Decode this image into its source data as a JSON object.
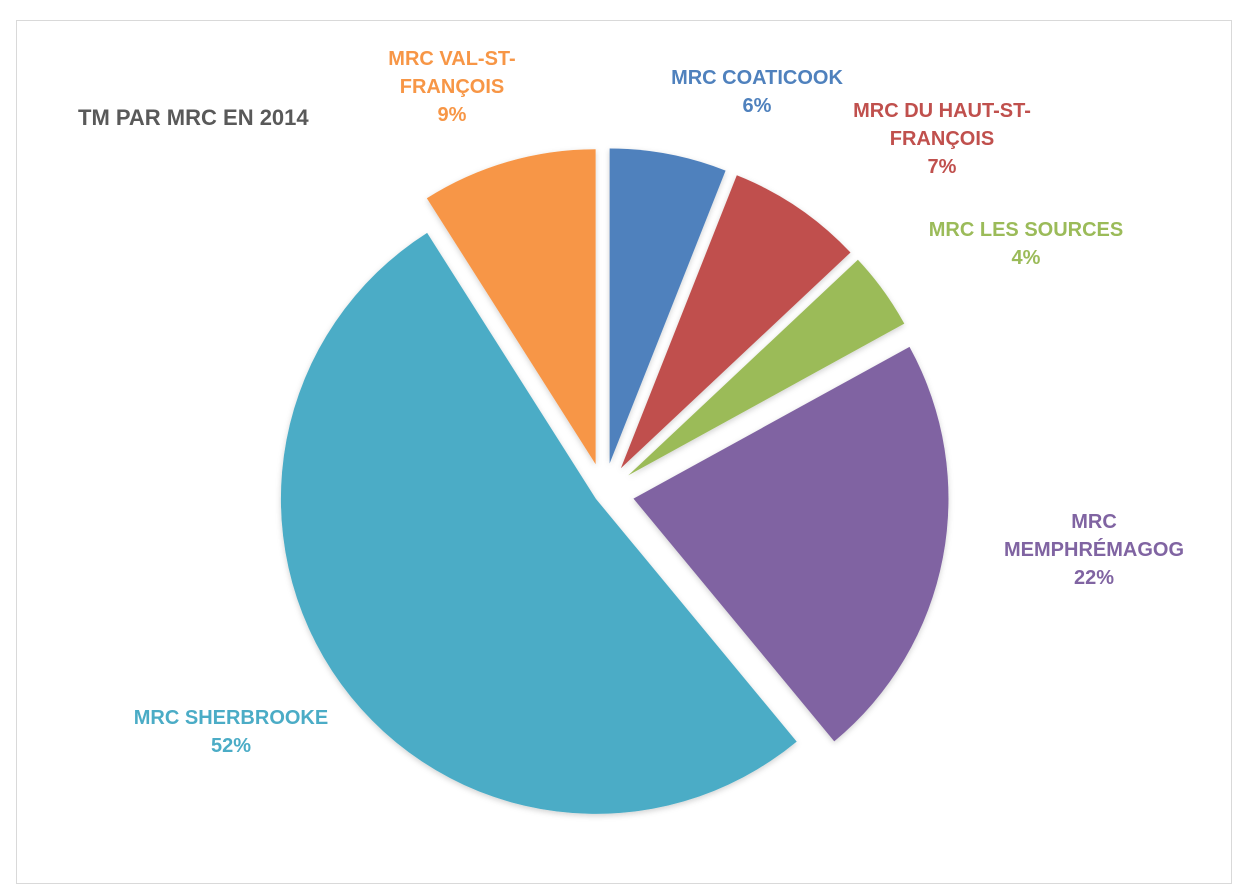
{
  "chart_data": {
    "type": "pie",
    "title": "TM  PAR MRC EN 2014",
    "exploded": true,
    "slices": [
      {
        "name": "MRC COATICOOK",
        "value": 6,
        "label_lines": [
          "MRC COATICOOK",
          "6%"
        ],
        "color": "#4f81bd"
      },
      {
        "name": "MRC DU HAUT-ST-FRANÇOIS",
        "value": 7,
        "label_lines": [
          "MRC DU HAUT-ST-",
          "FRANÇOIS",
          "7%"
        ],
        "color": "#c0504d"
      },
      {
        "name": "MRC LES SOURCES",
        "value": 4,
        "label_lines": [
          "MRC LES SOURCES",
          "4%"
        ],
        "color": "#9bbb59"
      },
      {
        "name": "MRC MEMPHRÉMAGOG",
        "value": 22,
        "label_lines": [
          "MRC",
          "MEMPHRÉMAGOG",
          "22%"
        ],
        "color": "#8064a2"
      },
      {
        "name": "MRC SHERBROOKE",
        "value": 52,
        "label_lines": [
          "MRC SHERBROOKE",
          "52%"
        ],
        "color": "#4bacc6"
      },
      {
        "name": "MRC VAL-ST-FRANÇOIS",
        "value": 9,
        "label_lines": [
          "MRC VAL-ST-",
          "FRANÇOIS",
          "9%"
        ],
        "color": "#f79646"
      }
    ]
  }
}
